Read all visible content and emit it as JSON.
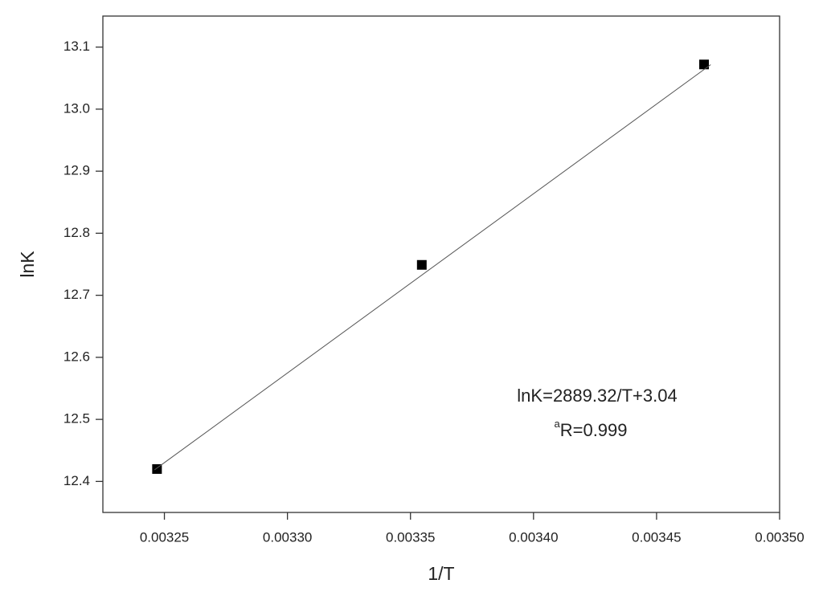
{
  "chart_data": {
    "type": "scatter",
    "x_label": "1/T",
    "y_label": "lnK",
    "xlim": [
      0.003225,
      0.0035
    ],
    "ylim": [
      12.35,
      13.15
    ],
    "xticks": [
      {
        "value": 0.00325,
        "label": "0.00325"
      },
      {
        "value": 0.0033,
        "label": "0.00330"
      },
      {
        "value": 0.00335,
        "label": "0.00335"
      },
      {
        "value": 0.0034,
        "label": "0.00340"
      },
      {
        "value": 0.00345,
        "label": "0.00345"
      },
      {
        "value": 0.0035,
        "label": "0.00350"
      }
    ],
    "yticks": [
      12.4,
      12.5,
      12.6,
      12.7,
      12.8,
      12.9,
      {
        "value": 13,
        "label": "13.0"
      },
      13.1
    ],
    "series": [
      {
        "kind": "points",
        "color": "#000000",
        "x": [
          0.003247,
          0.0033546,
          0.0034693
        ],
        "values": [
          12.42,
          12.749,
          13.072
        ]
      },
      {
        "kind": "line",
        "color": "#555555",
        "x": [
          0.003246,
          0.003472
        ],
        "values": [
          12.4187,
          13.0717
        ]
      }
    ],
    "annotations": {
      "equation": "lnK=2889.32/T+3.04",
      "r_superscript": "a",
      "r_text": "R=0.999"
    }
  }
}
